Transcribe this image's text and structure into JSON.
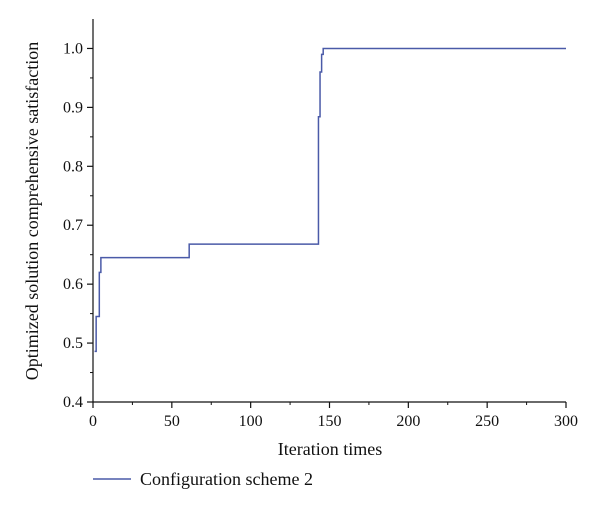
{
  "chart_data": {
    "type": "line",
    "title": "",
    "xlabel": "Iteration times",
    "ylabel": "Optimized solution comprehensive satisfaction",
    "xlim": [
      0,
      300
    ],
    "ylim": [
      0.4,
      1.05
    ],
    "x_ticks": [
      0,
      50,
      100,
      150,
      200,
      250,
      300
    ],
    "y_ticks": [
      0.4,
      0.5,
      0.6,
      0.7,
      0.8,
      0.9,
      1.0
    ],
    "x_tick_labels": [
      "0",
      "50",
      "100",
      "150",
      "200",
      "250",
      "300"
    ],
    "y_tick_labels": [
      "0.4",
      "0.5",
      "0.6",
      "0.7",
      "0.8",
      "0.9",
      "1.0"
    ],
    "grid": false,
    "legend_position": "bottom-left, below plot",
    "series": [
      {
        "name": "Configuration scheme 2",
        "color": "#4a5aa8",
        "x": [
          1,
          2,
          2,
          4,
          4,
          5,
          5,
          61,
          61,
          143,
          143,
          144,
          144,
          145,
          145,
          146,
          146,
          300
        ],
        "y": [
          0.486,
          0.486,
          0.545,
          0.545,
          0.62,
          0.62,
          0.645,
          0.645,
          0.668,
          0.668,
          0.884,
          0.884,
          0.96,
          0.96,
          0.99,
          0.99,
          1.0,
          1.0
        ]
      }
    ]
  }
}
